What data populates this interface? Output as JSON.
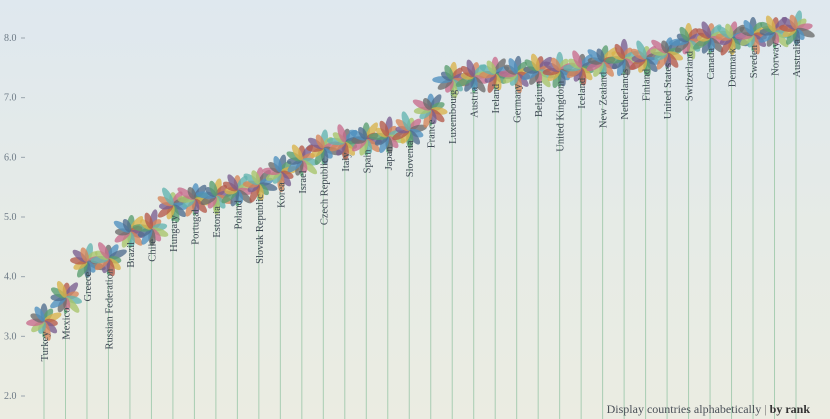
{
  "chart_data": {
    "type": "scatter",
    "ylim": [
      2.0,
      8.3
    ],
    "yticks": [
      "2.0",
      "3.0",
      "4.0",
      "5.0",
      "6.0",
      "7.0",
      "8.0"
    ],
    "categories": [
      "Turkey",
      "Mexico",
      "Greece",
      "Russian Federation",
      "Brazil",
      "Chile",
      "Hungary",
      "Portugal",
      "Estonia",
      "Poland",
      "Slovak Republic",
      "Korea",
      "Israel",
      "Czech Republic",
      "Italy",
      "Spain",
      "Japan",
      "Slovenia",
      "France",
      "Luxembourg",
      "Austria",
      "Ireland",
      "Germany",
      "Belgium",
      "United Kingdom",
      "Iceland",
      "New Zealand",
      "Netherlands",
      "Finland",
      "United States",
      "Switzerland",
      "Canada",
      "Denmark",
      "Sweden",
      "Norway",
      "Australia"
    ],
    "values": [
      3.25,
      3.65,
      4.25,
      4.3,
      4.75,
      4.8,
      5.2,
      5.3,
      5.35,
      5.45,
      5.55,
      5.75,
      5.95,
      6.15,
      6.25,
      6.3,
      6.35,
      6.45,
      6.8,
      7.3,
      7.35,
      7.4,
      7.4,
      7.45,
      7.45,
      7.5,
      7.6,
      7.65,
      7.65,
      7.75,
      7.95,
      8.0,
      8.0,
      8.05,
      8.1,
      8.15
    ],
    "petal_colors": [
      "#4f6d8e",
      "#5a9e6f",
      "#d8b24a",
      "#b55a4a",
      "#7a5d8f",
      "#d5855a",
      "#63b3b0",
      "#a8c46a",
      "#c86b8c",
      "#6c6c6c",
      "#4e8fbf"
    ]
  },
  "footer": {
    "option_alpha": "Display countries alphabetically",
    "separator": "|",
    "option_rank": "by rank"
  }
}
